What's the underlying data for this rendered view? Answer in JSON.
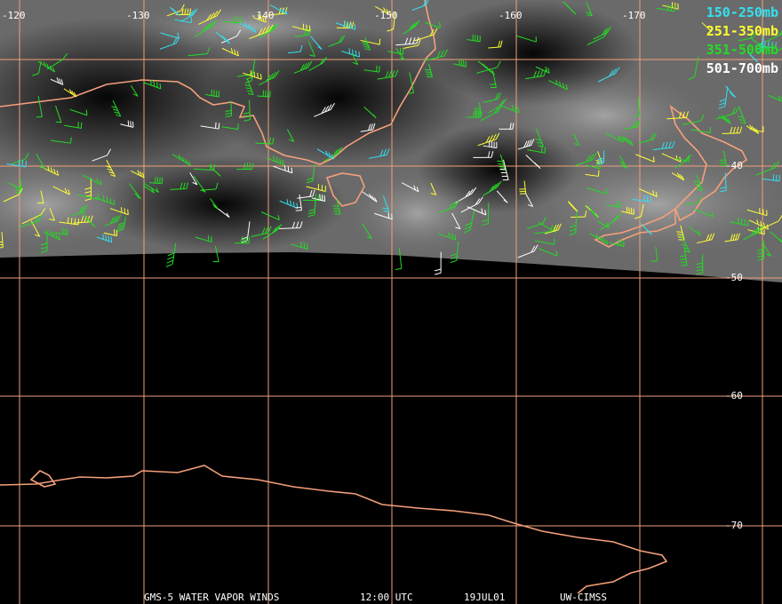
{
  "map": {
    "longitude_labels": [
      "-120",
      "-130",
      "-140",
      "-150",
      "-160",
      "-170"
    ],
    "latitude_labels": [
      "-40",
      "-50",
      "-60",
      "-70"
    ],
    "legend": [
      {
        "label": "150-250mb",
        "color": "#33e0f0"
      },
      {
        "label": "251-350mb",
        "color": "#ffff33"
      },
      {
        "label": "351-500mb",
        "color": "#22dd22"
      },
      {
        "label": "501-700mb",
        "color": "#ffffff"
      }
    ],
    "footer": [
      "GMS-5 WATER VAPOR WINDS",
      "12:00 UTC",
      "19JUL01",
      "UW-CIMSS"
    ]
  }
}
